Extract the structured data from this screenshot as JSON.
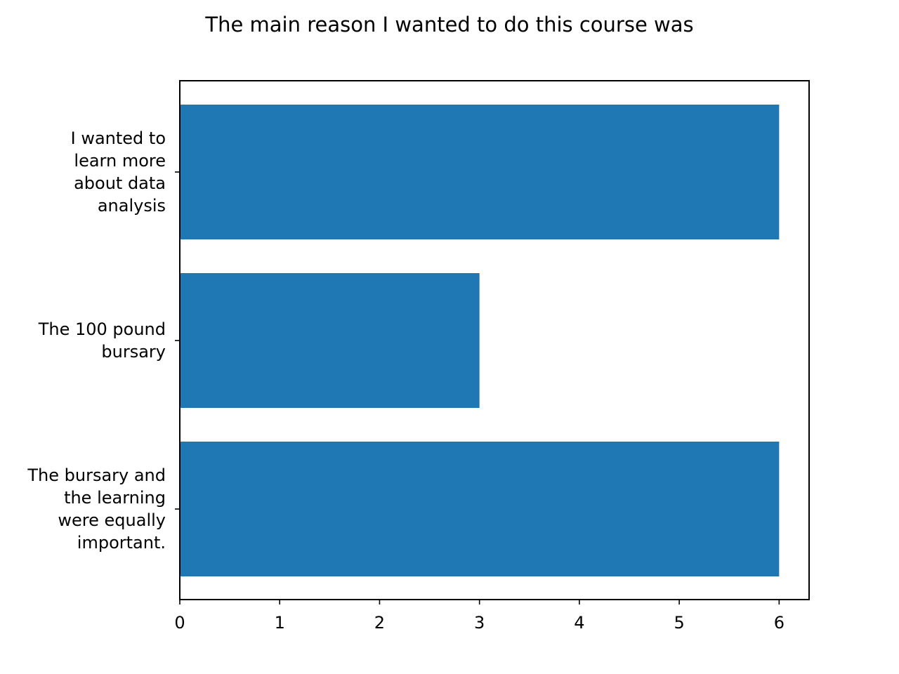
{
  "chart_data": {
    "type": "bar",
    "orientation": "horizontal",
    "title": "The main reason I wanted to do this course was",
    "xlabel": "",
    "ylabel": "",
    "categories": [
      [
        "I wanted to",
        "learn more",
        "about data",
        "analysis"
      ],
      [
        "The 100 pound",
        "bursary"
      ],
      [
        "The bursary and",
        "the learning",
        "were equally",
        "important."
      ]
    ],
    "values": [
      6,
      3,
      6
    ],
    "xlim": [
      0,
      6.3
    ],
    "xticks": [
      0,
      1,
      2,
      3,
      4,
      5,
      6
    ],
    "bar_color": "#1f77b4",
    "grid": false,
    "legend": "none"
  }
}
